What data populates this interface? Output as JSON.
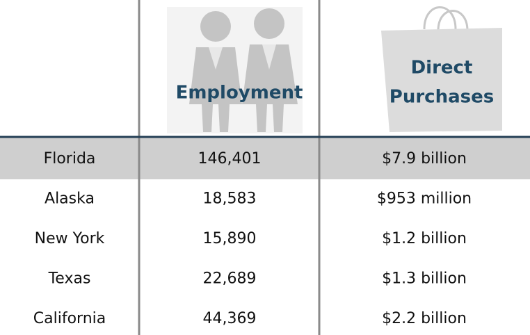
{
  "header": {
    "employment": "Employment",
    "purchases": [
      "Direct",
      "Purchases"
    ]
  },
  "table": {
    "rows": [
      [
        "Florida",
        "146,401",
        "$7.9 billion"
      ],
      [
        "Alaska",
        "18,583",
        "$953 million"
      ],
      [
        "New York",
        "15,890",
        "$1.2 billion"
      ],
      [
        "Texas",
        "22,689",
        "$1.3 billion"
      ],
      [
        "California",
        "44,369",
        "$2.2 billion"
      ]
    ]
  }
}
